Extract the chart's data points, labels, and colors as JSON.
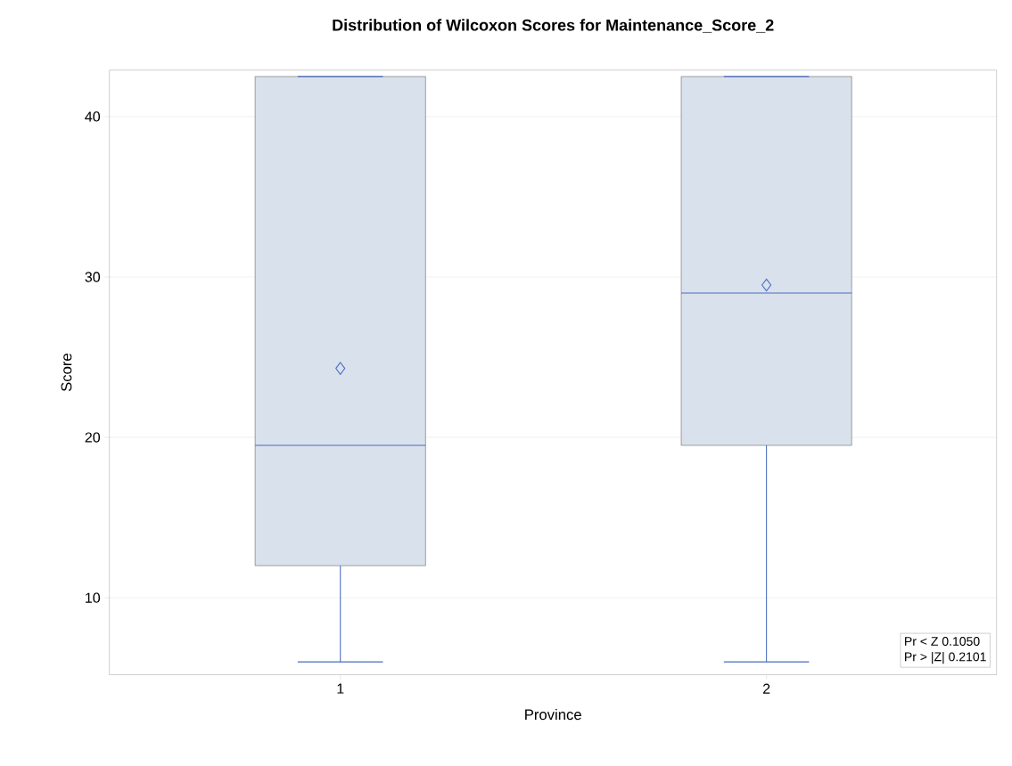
{
  "chart_data": {
    "type": "box",
    "title": "Distribution of Wilcoxon Scores for Maintenance_Score_2",
    "xlabel": "Province",
    "ylabel": "Score",
    "categories": [
      "1",
      "2"
    ],
    "boxes": [
      {
        "low": 6,
        "q1": 12,
        "median": 19.5,
        "q3": 42.5,
        "high": 42.5,
        "mean": 24.3
      },
      {
        "low": 6,
        "q1": 19.5,
        "median": 29,
        "q3": 42.5,
        "high": 42.5,
        "mean": 29.5
      }
    ],
    "colors": [
      "#d9e1ec",
      "#d9e1ec"
    ],
    "ylim": [
      5.2,
      42.9
    ],
    "yticks": [
      10,
      20,
      30,
      40
    ],
    "grid": "y",
    "marker": "diamond",
    "annotations": [
      "Pr < Z    0.1050",
      "Pr > |Z|   0.2101"
    ]
  }
}
